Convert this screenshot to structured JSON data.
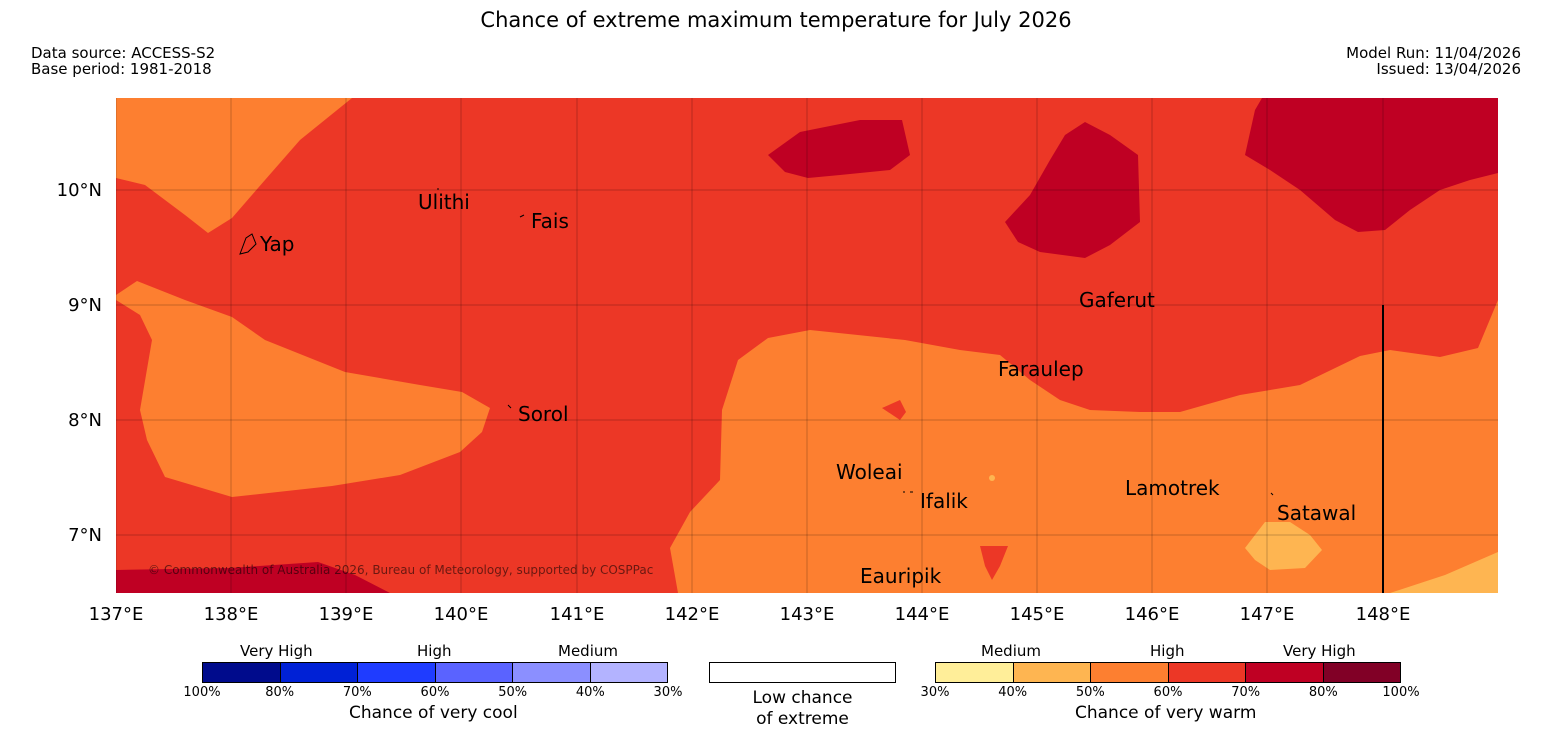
{
  "header": {
    "title": "Chance of extreme maximum temperature for July 2026",
    "data_source": "Data source: ACCESS-S2",
    "base_period": "Base period: 1981-2018",
    "model_run": "Model Run: 11/04/2026",
    "issued": "Issued: 13/04/2026"
  },
  "map": {
    "copyright": "© Commonwealth of Australia 2026, Bureau of Meteorology, supported by COSPPac",
    "lon_ticks": [
      "137°E",
      "138°E",
      "139°E",
      "140°E",
      "141°E",
      "142°E",
      "143°E",
      "144°E",
      "145°E",
      "146°E",
      "147°E",
      "148°E"
    ],
    "lat_ticks": [
      "10°N",
      "9°N",
      "8°N",
      "7°N"
    ],
    "places": [
      {
        "name": "Ulithi"
      },
      {
        "name": "Fais"
      },
      {
        "name": "Yap"
      },
      {
        "name": "Gaferut"
      },
      {
        "name": "Faraulep"
      },
      {
        "name": "Sorol"
      },
      {
        "name": "Woleai"
      },
      {
        "name": "Ifalik"
      },
      {
        "name": "Lamotrek"
      },
      {
        "name": "Satawal"
      },
      {
        "name": "Eauripik"
      }
    ]
  },
  "legend": {
    "cool": {
      "group_labels": [
        "Very High",
        "High",
        "Medium"
      ],
      "colors": [
        "#000b8c",
        "#0021d6",
        "#1f3cff",
        "#5a63ff",
        "#8b8fff",
        "#b3b3ff"
      ],
      "ticks": [
        "100%",
        "80%",
        "70%",
        "60%",
        "50%",
        "40%",
        "30%"
      ],
      "caption": "Chance of very cool"
    },
    "neutral": {
      "caption_line1": "Low chance",
      "caption_line2": "of extreme"
    },
    "warm": {
      "group_labels": [
        "Medium",
        "High",
        "Very High"
      ],
      "colors": [
        "#ffee99",
        "#feb551",
        "#fd7f30",
        "#ec3726",
        "#bf0023",
        "#810026"
      ],
      "ticks": [
        "30%",
        "40%",
        "50%",
        "60%",
        "70%",
        "80%",
        "100%"
      ],
      "caption": "Chance of very warm"
    },
    "map_colors": {
      "c50": "#fd7f30",
      "c60": "#ec3726",
      "c70": "#bf0023",
      "c40": "#feb551"
    }
  }
}
